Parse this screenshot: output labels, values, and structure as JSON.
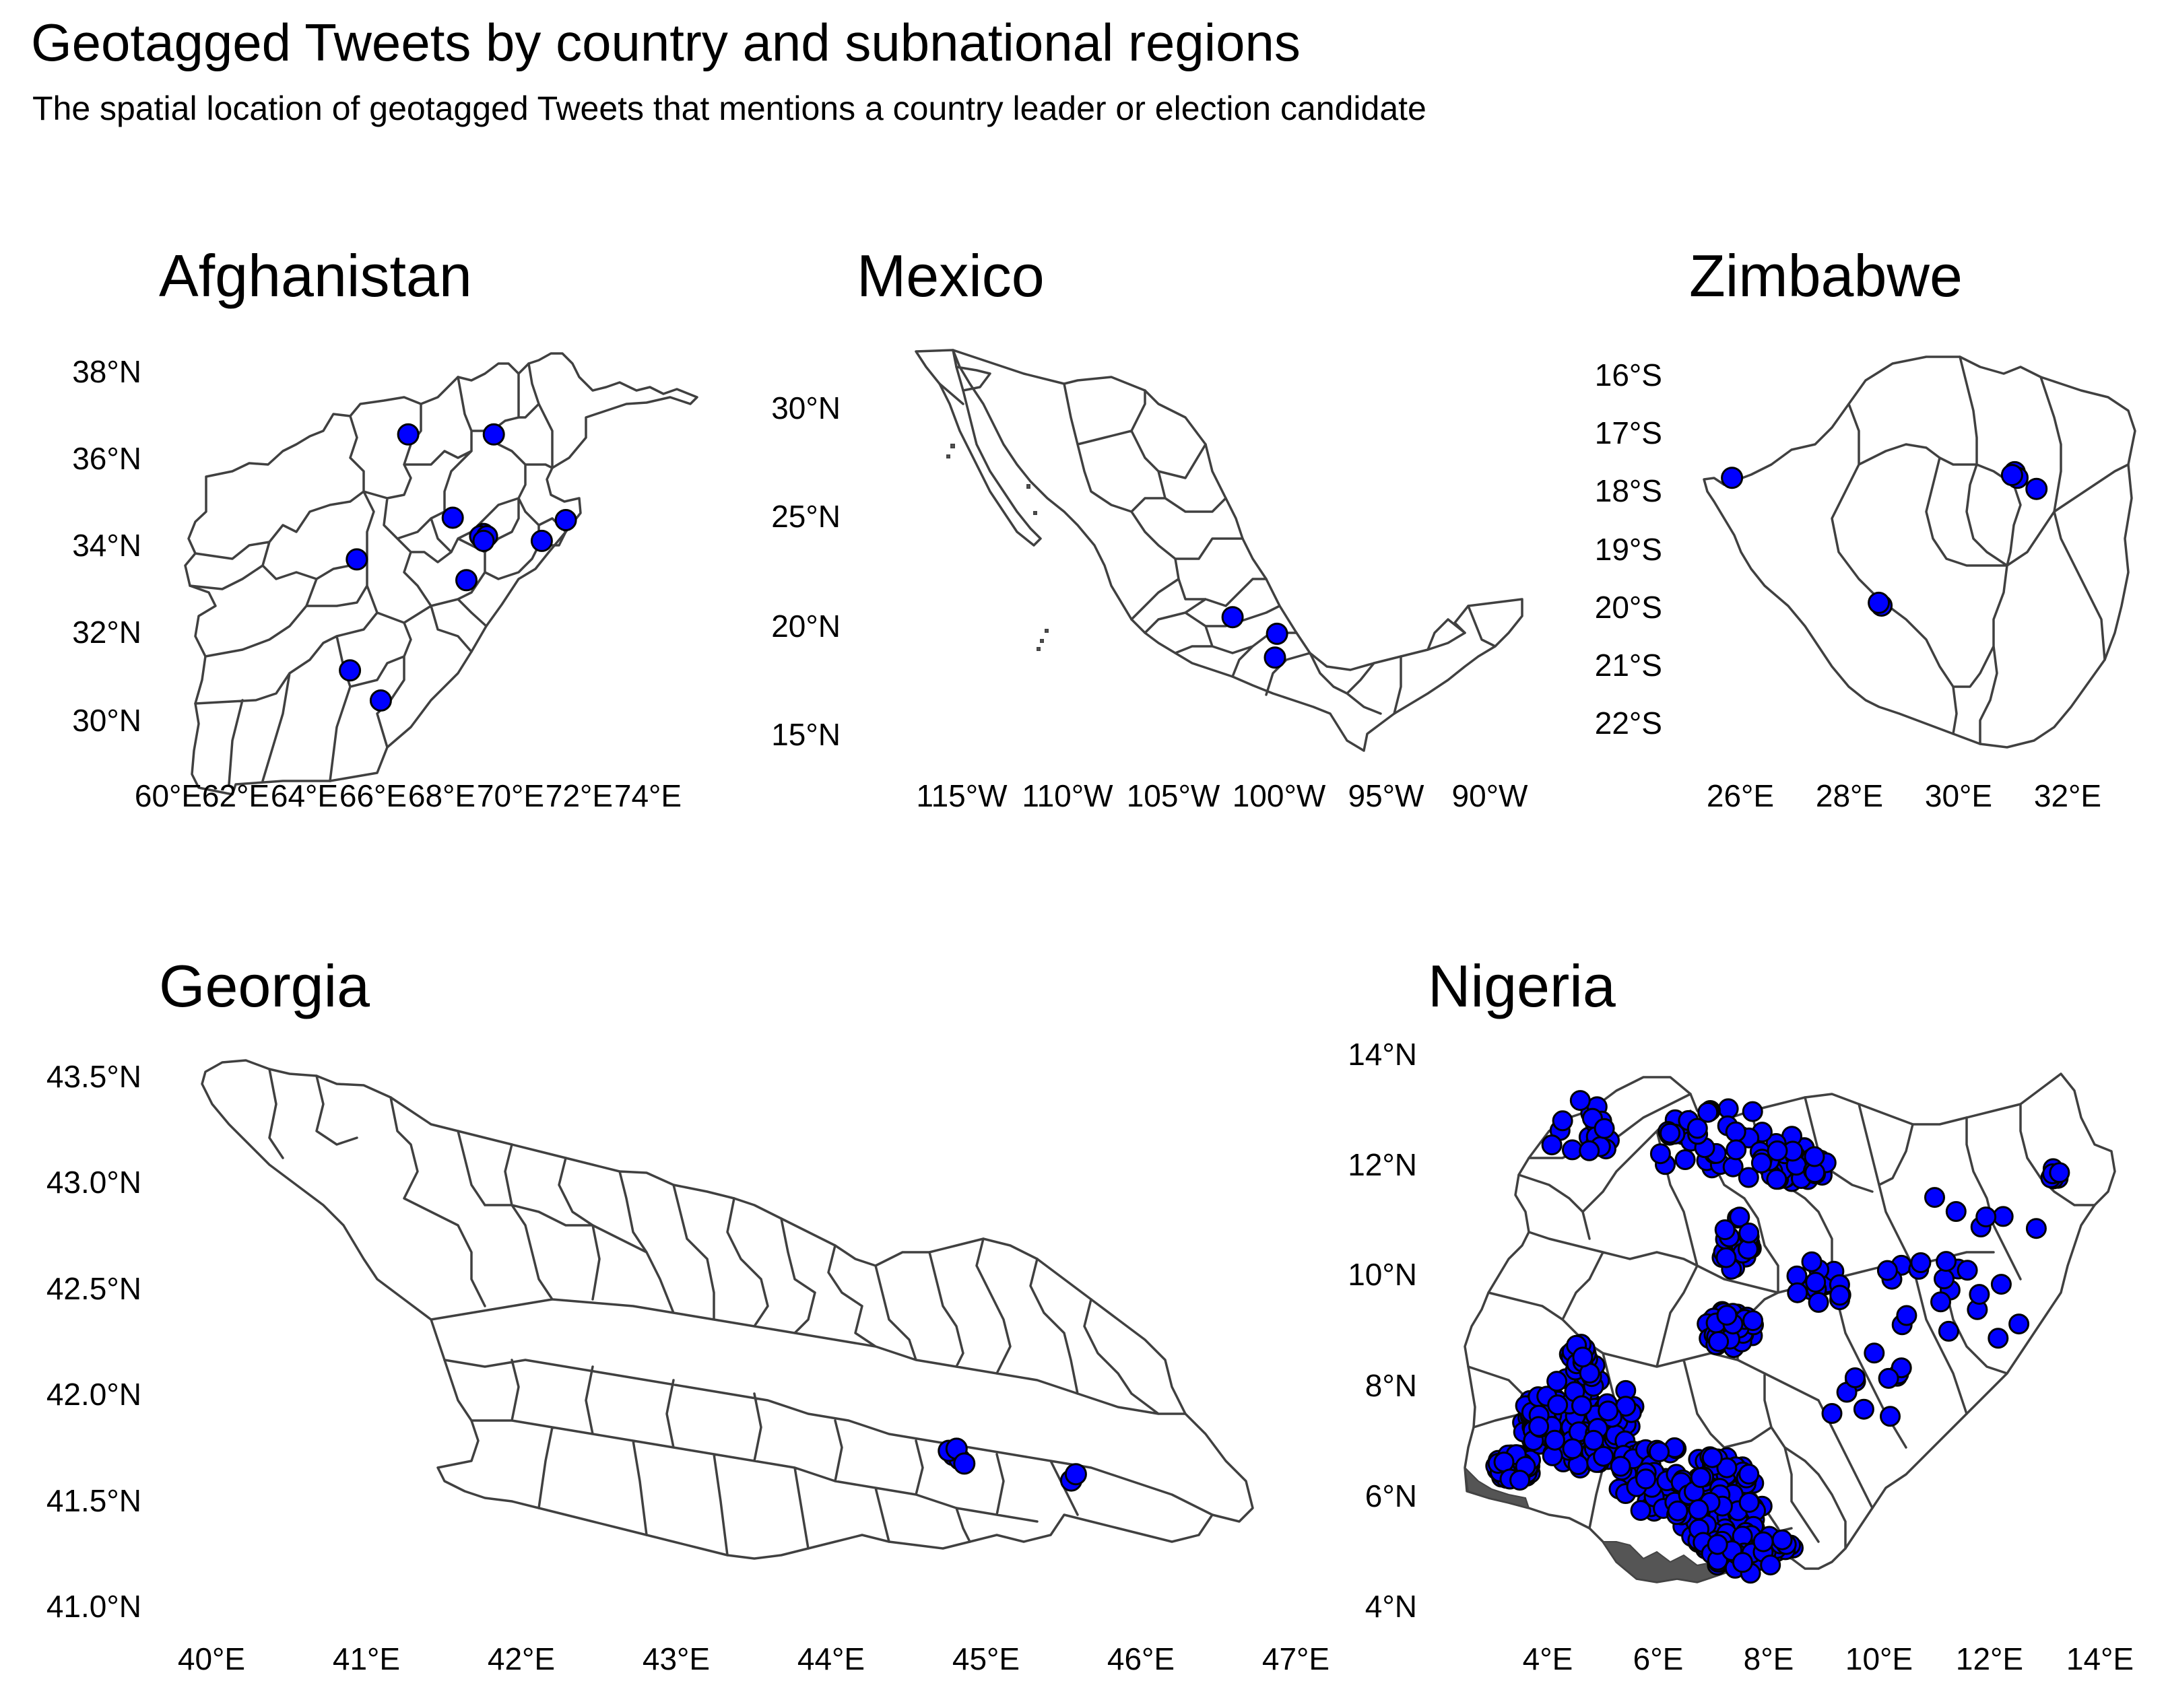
{
  "title": "Geotagged Tweets by country and subnational regions",
  "subtitle": "The spatial location of geotagged Tweets that mentions a country leader or election candidate",
  "colors": {
    "point_fill": "#0000ff",
    "point_stroke": "#000000",
    "border": "#404040",
    "background": "#ffffff"
  },
  "chart_data": [
    {
      "type": "map",
      "title": "Afghanistan",
      "x_ticks": [
        "60°E",
        "62°E",
        "64°E",
        "66°E",
        "68°E",
        "70°E",
        "72°E",
        "74°E"
      ],
      "y_ticks": [
        "38°N",
        "36°N",
        "34°N",
        "32°N",
        "30°N"
      ],
      "xlim": [
        60,
        74.9
      ],
      "ylim": [
        29.3,
        38.5
      ],
      "points": [
        [
          67.0,
          36.7
        ],
        [
          69.5,
          36.7
        ],
        [
          68.3,
          34.9
        ],
        [
          69.2,
          34.55
        ],
        [
          69.1,
          34.5
        ],
        [
          69.3,
          34.5
        ],
        [
          69.2,
          34.4
        ],
        [
          70.9,
          34.4
        ],
        [
          71.6,
          34.85
        ],
        [
          65.5,
          34.0
        ],
        [
          68.7,
          33.55
        ],
        [
          65.3,
          31.6
        ],
        [
          66.2,
          30.95
        ]
      ]
    },
    {
      "type": "map",
      "title": "Mexico",
      "x_ticks": [
        "115°W",
        "110°W",
        "105°W",
        "100°W",
        "95°W",
        "90°W"
      ],
      "y_ticks": [
        "30°N",
        "25°N",
        "20°N",
        "15°N"
      ],
      "xlim": [
        -117.3,
        -86.6
      ],
      "ylim": [
        14.5,
        32.7
      ],
      "points": [
        [
          -101.2,
          21.1
        ],
        [
          -99.1,
          20.4
        ],
        [
          -99.2,
          19.4
        ]
      ]
    },
    {
      "type": "map",
      "title": "Zimbabwe",
      "x_ticks": [
        "26°E",
        "28°E",
        "30°E",
        "32°E"
      ],
      "y_ticks": [
        "16°S",
        "17°S",
        "18°S",
        "19°S",
        "20°S",
        "21°S",
        "22°S"
      ],
      "xlim": [
        25.2,
        33.1
      ],
      "ylim": [
        -22.45,
        -15.6
      ],
      "points": [
        [
          25.85,
          -17.85
        ],
        [
          31.05,
          -17.75
        ],
        [
          31.1,
          -17.85
        ],
        [
          31.0,
          -17.8
        ],
        [
          31.45,
          -18.05
        ],
        [
          28.6,
          -20.15
        ],
        [
          28.55,
          -20.1
        ]
      ]
    },
    {
      "type": "map",
      "title": "Georgia",
      "x_ticks": [
        "40°E",
        "41°E",
        "42°E",
        "43°E",
        "44°E",
        "45°E",
        "46°E",
        "47°E"
      ],
      "y_ticks": [
        "43.5°N",
        "43.0°N",
        "42.5°N",
        "42.0°N",
        "41.5°N",
        "41.0°N"
      ],
      "xlim": [
        39.9,
        47.1
      ],
      "ylim": [
        40.95,
        43.6
      ],
      "points": [
        [
          44.79,
          41.72
        ],
        [
          44.83,
          41.7
        ],
        [
          44.76,
          41.74
        ],
        [
          44.81,
          41.75
        ],
        [
          44.86,
          41.68
        ],
        [
          45.55,
          41.6
        ],
        [
          45.58,
          41.63
        ]
      ]
    },
    {
      "type": "map",
      "title": "Nigeria",
      "x_ticks": [
        "4°E",
        "6°E",
        "8°E",
        "10°E",
        "12°E",
        "14°E"
      ],
      "y_ticks": [
        "14°N",
        "12°N",
        "10°N",
        "8°N",
        "6°N",
        "4°N"
      ],
      "xlim": [
        2.6,
        14.8
      ],
      "ylim": [
        4.1,
        14.0
      ],
      "clusters": [
        {
          "name": "lagos",
          "cx": 3.4,
          "cy": 6.55,
          "rx": 0.35,
          "ry": 0.25,
          "n": 60
        },
        {
          "name": "ibadan",
          "cx": 3.95,
          "cy": 7.4,
          "rx": 0.45,
          "ry": 0.45,
          "n": 55
        },
        {
          "name": "southwest",
          "cx": 4.7,
          "cy": 7.4,
          "rx": 0.9,
          "ry": 0.9,
          "n": 90
        },
        {
          "name": "benin",
          "cx": 5.9,
          "cy": 6.4,
          "rx": 0.7,
          "ry": 0.7,
          "n": 40
        },
        {
          "name": "southeast",
          "cx": 7.1,
          "cy": 5.9,
          "rx": 0.8,
          "ry": 0.9,
          "n": 110
        },
        {
          "name": "south",
          "cx": 7.7,
          "cy": 5.0,
          "rx": 0.8,
          "ry": 0.4,
          "n": 45
        },
        {
          "name": "abuja",
          "cx": 7.3,
          "cy": 9.05,
          "rx": 0.5,
          "ry": 0.35,
          "n": 45
        },
        {
          "name": "kaduna",
          "cx": 7.4,
          "cy": 10.6,
          "rx": 0.3,
          "ry": 0.5,
          "n": 25
        },
        {
          "name": "kano",
          "cx": 8.5,
          "cy": 12.0,
          "rx": 0.6,
          "ry": 0.35,
          "n": 45
        },
        {
          "name": "north",
          "cx": 7.2,
          "cy": 12.4,
          "rx": 1.3,
          "ry": 0.7,
          "n": 40
        },
        {
          "name": "sokoto",
          "cx": 4.6,
          "cy": 12.6,
          "rx": 0.6,
          "ry": 0.6,
          "n": 18
        },
        {
          "name": "jos",
          "cx": 8.9,
          "cy": 9.8,
          "rx": 0.5,
          "ry": 0.5,
          "n": 15
        },
        {
          "name": "east_north",
          "cx": 11.5,
          "cy": 10.2,
          "rx": 1.6,
          "ry": 1.5,
          "n": 25
        },
        {
          "name": "maiduguri",
          "cx": 13.1,
          "cy": 11.85,
          "rx": 0.2,
          "ry": 0.15,
          "n": 6
        },
        {
          "name": "middle",
          "cx": 9.5,
          "cy": 8.0,
          "rx": 1.0,
          "ry": 1.0,
          "n": 12
        },
        {
          "name": "ilorin",
          "cx": 4.6,
          "cy": 8.5,
          "rx": 0.3,
          "ry": 0.3,
          "n": 15
        }
      ]
    }
  ]
}
